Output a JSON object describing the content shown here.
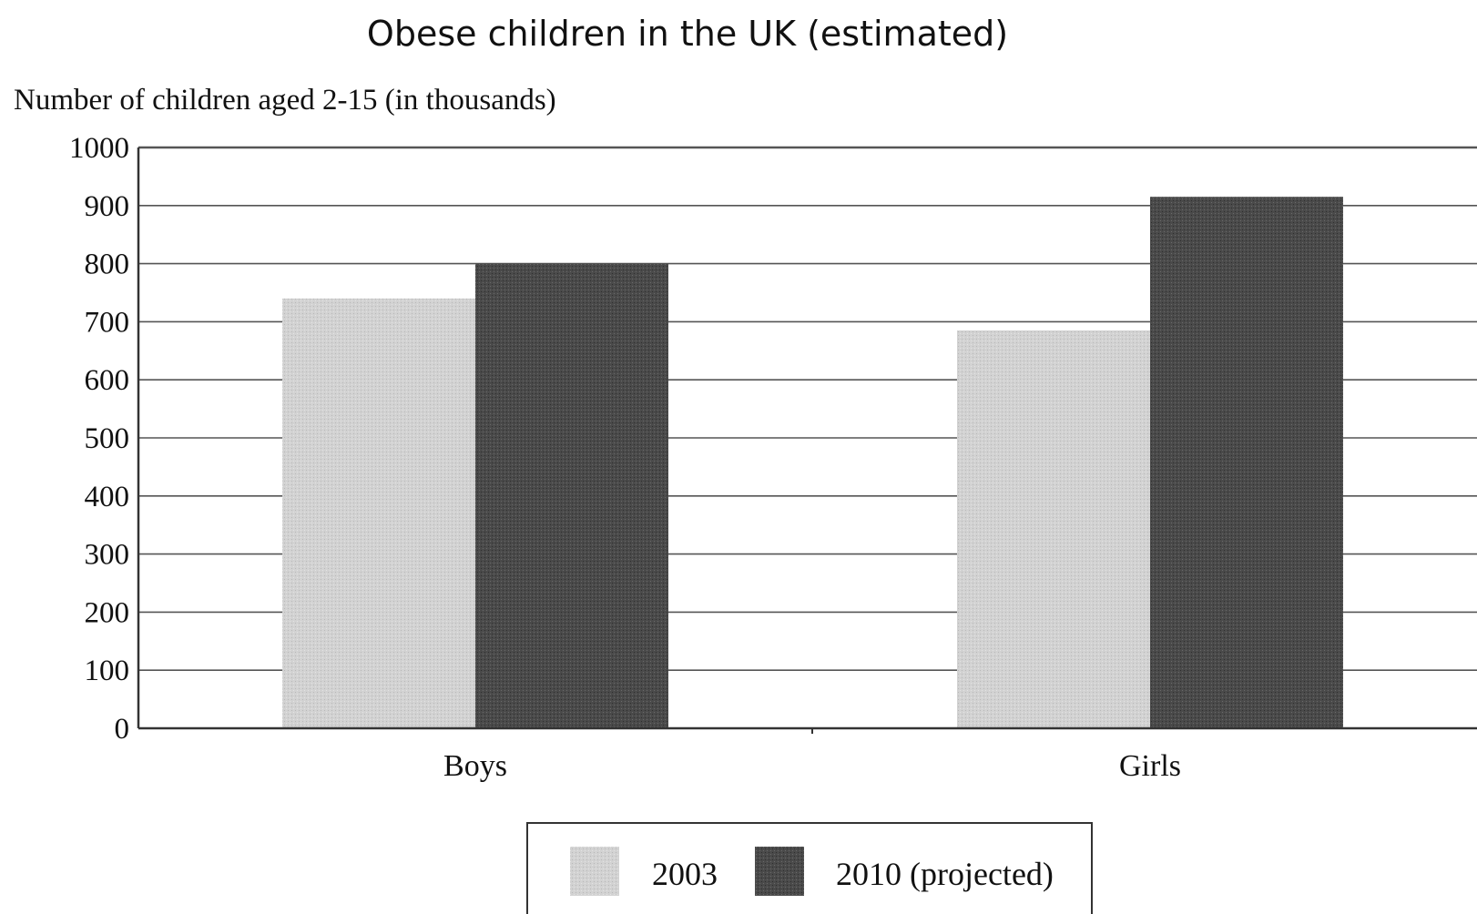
{
  "chart_data": {
    "type": "bar",
    "title": "Obese children in the UK (estimated)",
    "ylabel": "Number of children aged 2-15 (in thousands)",
    "xlabel": "",
    "categories": [
      "Boys",
      "Girls"
    ],
    "series": [
      {
        "name": "2003",
        "values": [
          740,
          685
        ],
        "color": "#cfcfcf"
      },
      {
        "name": "2010 (projected)",
        "values": [
          800,
          915
        ],
        "color": "#4a4a4a"
      }
    ],
    "ylim": [
      0,
      1000
    ],
    "yticks": [
      "0",
      "100",
      "200",
      "300",
      "400",
      "500",
      "600",
      "700",
      "800",
      "900",
      "1000"
    ],
    "grid": true,
    "legend_position": "bottom-center"
  }
}
